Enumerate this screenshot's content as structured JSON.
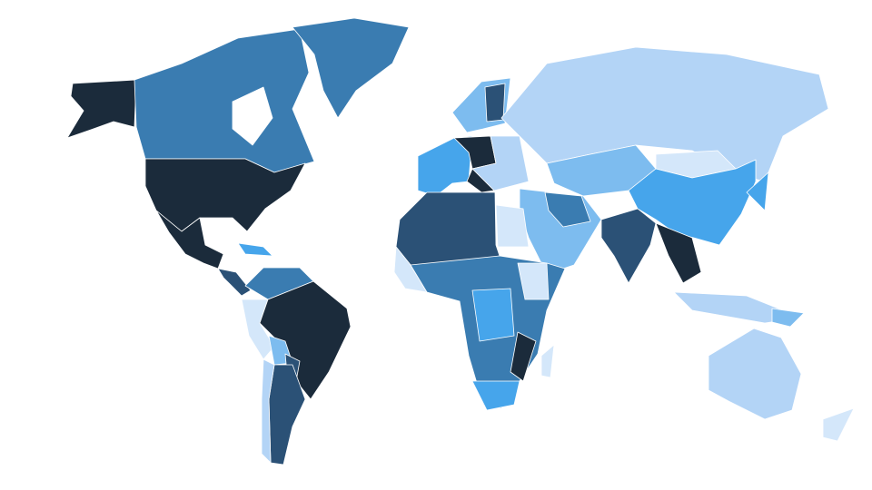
{
  "map": {
    "palette": [
      "#1b2b3b",
      "#2b5176",
      "#3a7cb1",
      "#46a5eb",
      "#7dbcef",
      "#b3d4f6",
      "#d4e7fa"
    ]
  }
}
